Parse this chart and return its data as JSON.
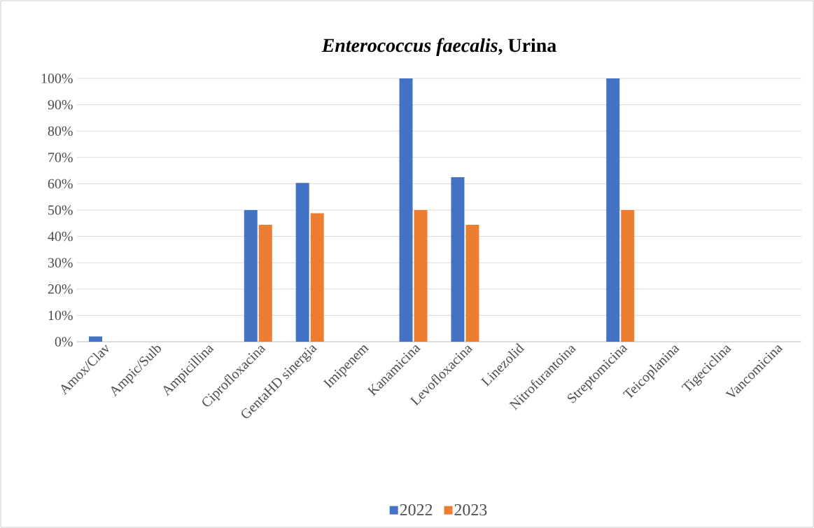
{
  "chart_data": {
    "type": "bar",
    "title": "*Enterococcus faecalis*, Urina",
    "categories": [
      "Amox/Clav",
      "Ampic/Sulb",
      "Ampicillina",
      "Ciprofloxacina",
      "GentaHD sinergia",
      "Imipenem",
      "Kanamicina",
      "Levofloxacina",
      "Linezolid",
      "Nitrofurantoina",
      "Streptomicina",
      "Teicoplanina",
      "Tigeciclina",
      "Vancomicina"
    ],
    "series": [
      {
        "name": "2022",
        "color": "#4472c4",
        "values": [
          2,
          0,
          0,
          50,
          60.3,
          0,
          100,
          62.5,
          0,
          0,
          100,
          0,
          0,
          0
        ]
      },
      {
        "name": "2023",
        "color": "#ed7d31",
        "values": [
          0,
          0,
          0,
          44.4,
          48.8,
          0,
          50,
          44.4,
          0,
          0,
          50,
          0,
          0,
          0
        ]
      }
    ],
    "ylim": [
      0,
      100
    ],
    "yticks": [
      {
        "value": 0,
        "label": "0%"
      },
      {
        "value": 10,
        "label": "10%"
      },
      {
        "value": 20,
        "label": "20%"
      },
      {
        "value": 30,
        "label": "30%"
      },
      {
        "value": 40,
        "label": "40%"
      },
      {
        "value": 50,
        "label": "50%"
      },
      {
        "value": 60,
        "label": "60%"
      },
      {
        "value": 70,
        "label": "70%"
      },
      {
        "value": 80,
        "label": "80%"
      },
      {
        "value": 90,
        "label": "90%"
      },
      {
        "value": 100,
        "label": "100%"
      }
    ],
    "grid": "y",
    "legend": "bottom"
  }
}
